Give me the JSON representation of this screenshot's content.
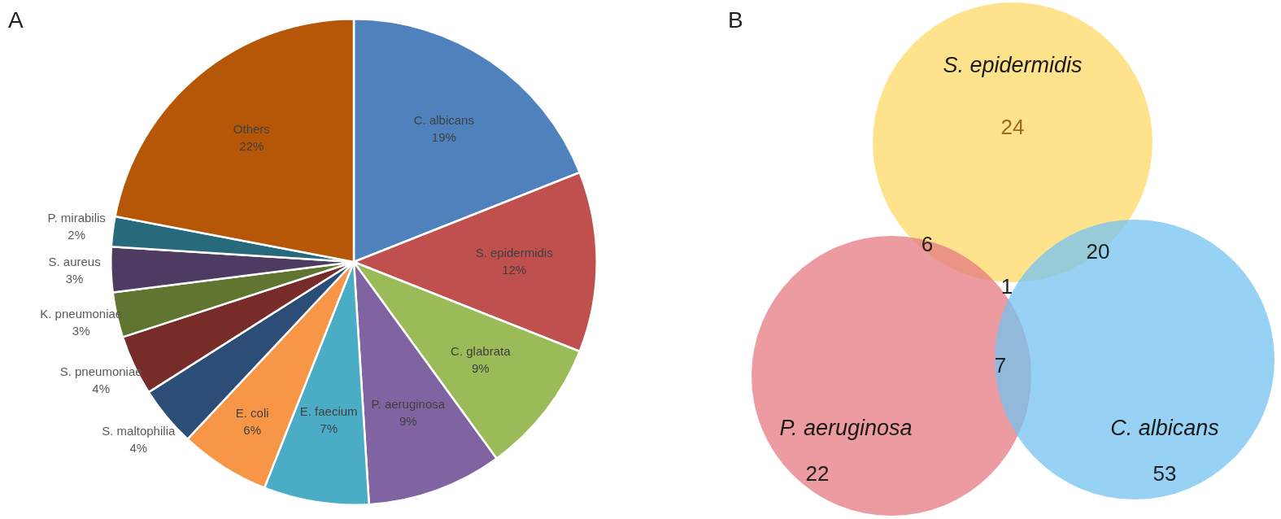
{
  "chart_data": [
    {
      "type": "pie",
      "title": "A",
      "categories": [
        "C. albicans",
        "S. epidermidis",
        "C. glabrata",
        "P. aeruginosa",
        "E. faecium",
        "E. coli",
        "S. maltophilia",
        "S. pneumoniae",
        "K. pneumoniae",
        "S. aureus",
        "P. mirabilis",
        "Others"
      ],
      "values": [
        19,
        12,
        9,
        9,
        7,
        6,
        4,
        4,
        3,
        3,
        2,
        22
      ],
      "value_labels": [
        "19%",
        "12%",
        "9%",
        "9%",
        "7%",
        "6%",
        "4%",
        "4%",
        "3%",
        "3%",
        "2%",
        "22%"
      ],
      "colors": [
        "#4f81bd",
        "#c0504d",
        "#9bbb59",
        "#8064a2",
        "#4bacc6",
        "#f79646",
        "#2c4d75",
        "#772c2a",
        "#5f7530",
        "#4d3b62",
        "#276a7c",
        "#b65708"
      ],
      "data_labels": true
    },
    {
      "type": "venn",
      "title": "B",
      "sets": [
        {
          "name": "S. epidermidis",
          "color": "#ffd966"
        },
        {
          "name": "P. aeruginosa",
          "color": "#e57a80"
        },
        {
          "name": "C. albicans",
          "color": "#74c3f0"
        }
      ],
      "regions": [
        {
          "sets": [
            "S. epidermidis"
          ],
          "value": 24
        },
        {
          "sets": [
            "P. aeruginosa"
          ],
          "value": 22
        },
        {
          "sets": [
            "C. albicans"
          ],
          "value": 53
        },
        {
          "sets": [
            "S. epidermidis",
            "P. aeruginosa"
          ],
          "value": 6
        },
        {
          "sets": [
            "S. epidermidis",
            "C. albicans"
          ],
          "value": 20
        },
        {
          "sets": [
            "P. aeruginosa",
            "C. albicans"
          ],
          "value": 7
        },
        {
          "sets": [
            "S. epidermidis",
            "P. aeruginosa",
            "C. albicans"
          ],
          "value": 1
        }
      ],
      "data_labels": true
    }
  ]
}
